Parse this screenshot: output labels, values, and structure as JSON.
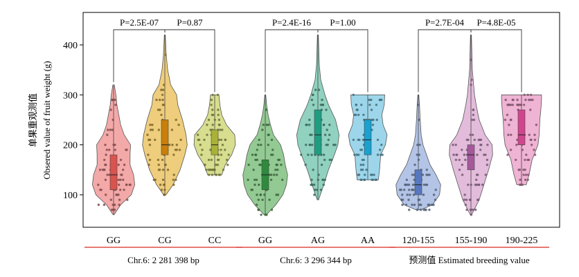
{
  "chart_data": {
    "type": "violin",
    "ylabel_cn": "单果重观测值",
    "ylabel_en": "Obsered value of fruit weight (g)",
    "y_ticks": [
      100,
      200,
      300,
      400
    ],
    "ylim": [
      35,
      465
    ],
    "grid": false,
    "groups": [
      {
        "label": "Chr.6: 2 281 398 bp",
        "categories": [
          {
            "label": "GG",
            "color": "#f08c8c",
            "box_color": "#d9534f",
            "min": 60,
            "q1": 110,
            "median": 140,
            "q3": 180,
            "max": 320,
            "density": [
              [
                60,
                0.02
              ],
              [
                80,
                0.3
              ],
              [
                100,
                0.75
              ],
              [
                120,
                0.9
              ],
              [
                140,
                0.85
              ],
              [
                160,
                0.7
              ],
              [
                180,
                0.7
              ],
              [
                200,
                0.72
              ],
              [
                220,
                0.45
              ],
              [
                240,
                0.3
              ],
              [
                260,
                0.22
              ],
              [
                280,
                0.14
              ],
              [
                300,
                0.1
              ],
              [
                320,
                0.03
              ]
            ]
          },
          {
            "label": "CG",
            "color": "#e8bc50",
            "box_color": "#c97f0a",
            "min": 100,
            "q1": 180,
            "median": 200,
            "q3": 250,
            "max": 420,
            "density": [
              [
                100,
                0.05
              ],
              [
                120,
                0.35
              ],
              [
                150,
                0.65
              ],
              [
                180,
                0.85
              ],
              [
                200,
                0.95
              ],
              [
                220,
                0.9
              ],
              [
                250,
                0.75
              ],
              [
                280,
                0.55
              ],
              [
                300,
                0.5
              ],
              [
                320,
                0.25
              ],
              [
                350,
                0.12
              ],
              [
                380,
                0.06
              ],
              [
                420,
                0.02
              ]
            ]
          },
          {
            "label": "CC",
            "color": "#cbd36a",
            "box_color": "#a9b236",
            "min": 140,
            "q1": 180,
            "median": 200,
            "q3": 230,
            "max": 300,
            "density": [
              [
                140,
                0.3
              ],
              [
                160,
                0.45
              ],
              [
                180,
                0.72
              ],
              [
                200,
                0.88
              ],
              [
                220,
                0.85
              ],
              [
                240,
                0.5
              ],
              [
                260,
                0.3
              ],
              [
                280,
                0.22
              ],
              [
                300,
                0.18
              ]
            ]
          }
        ]
      },
      {
        "label": "Chr.6: 3 296 344 bp",
        "categories": [
          {
            "label": "GG",
            "color": "#6fb86f",
            "box_color": "#2e8b3e",
            "min": 60,
            "q1": 110,
            "median": 140,
            "q3": 170,
            "max": 300,
            "density": [
              [
                60,
                0.05
              ],
              [
                80,
                0.45
              ],
              [
                100,
                0.75
              ],
              [
                120,
                0.9
              ],
              [
                140,
                0.95
              ],
              [
                160,
                0.85
              ],
              [
                180,
                0.78
              ],
              [
                200,
                0.65
              ],
              [
                220,
                0.35
              ],
              [
                240,
                0.22
              ],
              [
                260,
                0.12
              ],
              [
                280,
                0.06
              ],
              [
                300,
                0.02
              ]
            ]
          },
          {
            "label": "AG",
            "color": "#6cc1a9",
            "box_color": "#1f9d82",
            "min": 90,
            "q1": 180,
            "median": 220,
            "q3": 270,
            "max": 420,
            "density": [
              [
                90,
                0.03
              ],
              [
                120,
                0.25
              ],
              [
                150,
                0.45
              ],
              [
                180,
                0.7
              ],
              [
                200,
                0.85
              ],
              [
                220,
                0.9
              ],
              [
                250,
                0.75
              ],
              [
                280,
                0.45
              ],
              [
                300,
                0.3
              ],
              [
                330,
                0.12
              ],
              [
                360,
                0.06
              ],
              [
                420,
                0.02
              ]
            ]
          },
          {
            "label": "AA",
            "color": "#7cc8e4",
            "box_color": "#1aa1cf",
            "min": 130,
            "q1": 180,
            "median": 210,
            "q3": 250,
            "max": 300,
            "density": [
              [
                130,
                0.45
              ],
              [
                150,
                0.5
              ],
              [
                180,
                0.55
              ],
              [
                200,
                0.75
              ],
              [
                220,
                0.82
              ],
              [
                240,
                0.65
              ],
              [
                260,
                0.6
              ],
              [
                280,
                0.7
              ],
              [
                300,
                0.72
              ]
            ]
          }
        ]
      },
      {
        "label": "预测值 Estimated breeding value",
        "categories": [
          {
            "label": "120-155",
            "color": "#99b0de",
            "box_color": "#5778bf",
            "min": 70,
            "q1": 100,
            "median": 120,
            "q3": 150,
            "max": 300,
            "density": [
              [
                70,
                0.1
              ],
              [
                80,
                0.6
              ],
              [
                100,
                0.9
              ],
              [
                120,
                0.95
              ],
              [
                140,
                0.75
              ],
              [
                160,
                0.5
              ],
              [
                180,
                0.35
              ],
              [
                200,
                0.2
              ],
              [
                220,
                0.12
              ],
              [
                250,
                0.08
              ],
              [
                280,
                0.05
              ],
              [
                300,
                0.02
              ]
            ]
          },
          {
            "label": "155-190",
            "color": "#d9a6cf",
            "box_color": "#a5589b",
            "min": 60,
            "q1": 150,
            "median": 180,
            "q3": 200,
            "max": 420,
            "density": [
              [
                60,
                0.03
              ],
              [
                90,
                0.35
              ],
              [
                120,
                0.55
              ],
              [
                150,
                0.75
              ],
              [
                180,
                0.92
              ],
              [
                200,
                0.9
              ],
              [
                220,
                0.6
              ],
              [
                250,
                0.35
              ],
              [
                280,
                0.22
              ],
              [
                300,
                0.15
              ],
              [
                350,
                0.06
              ],
              [
                420,
                0.02
              ]
            ]
          },
          {
            "label": "190-225",
            "color": "#e99ac4",
            "box_color": "#d1458f",
            "min": 120,
            "q1": 200,
            "median": 220,
            "q3": 270,
            "max": 300,
            "density": [
              [
                120,
                0.2
              ],
              [
                140,
                0.32
              ],
              [
                170,
                0.45
              ],
              [
                200,
                0.7
              ],
              [
                220,
                0.75
              ],
              [
                250,
                0.78
              ],
              [
                270,
                0.82
              ],
              [
                290,
                0.85
              ],
              [
                300,
                0.85
              ]
            ]
          }
        ]
      }
    ],
    "comparisons": [
      {
        "label": "P=2.5E-07",
        "from": 0,
        "to": 1
      },
      {
        "label": "P=0.87",
        "from": 1,
        "to": 2
      },
      {
        "label": "P=2.4E-16",
        "from": 3,
        "to": 4
      },
      {
        "label": "P=1.00",
        "from": 4,
        "to": 5
      },
      {
        "label": "P=2.7E-04",
        "from": 6,
        "to": 7
      },
      {
        "label": "P=4.8E-05",
        "from": 7,
        "to": 8
      }
    ]
  }
}
